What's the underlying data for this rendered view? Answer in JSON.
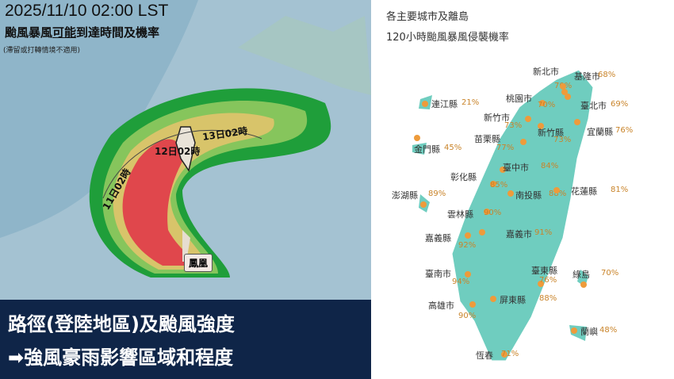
{
  "left_panel": {
    "datetime": "2025/11/10 02:00 LST",
    "title_pre": "颱風暴風",
    "title_underlined": "可能",
    "title_post": "到達時間及機率",
    "note": "(滯留或打轉情境不適用)",
    "track_labels": [
      "13日02時",
      "12日02時",
      "11日02時"
    ],
    "typhoon_name": "鳳凰",
    "colors": {
      "green": "#1f9e3a",
      "yellow": "#d8c46a",
      "red": "#e0474c",
      "sea": "#8fb5c9"
    }
  },
  "banner": {
    "line1": "路徑(登陸地區)及颱風強度",
    "line2": "➡強風豪雨影響區域和程度",
    "background": "#0f2548"
  },
  "right_panel": {
    "title1": "各主要城市及離島",
    "title2": "120小時颱風暴風侵襲機率",
    "land_color": "#6fcdbf",
    "locations": [
      {
        "name": "新北市",
        "prob": "70%"
      },
      {
        "name": "基隆市",
        "prob": "68%"
      },
      {
        "name": "桃園市",
        "prob": "70%"
      },
      {
        "name": "臺北市",
        "prob": "69%"
      },
      {
        "name": "連江縣",
        "prob": "21%"
      },
      {
        "name": "新竹市",
        "prob": "73%"
      },
      {
        "name": "新竹縣",
        "prob": "73%"
      },
      {
        "name": "宜蘭縣",
        "prob": "76%"
      },
      {
        "name": "苗栗縣",
        "prob": "77%"
      },
      {
        "name": "金門縣",
        "prob": "45%"
      },
      {
        "name": "臺中市",
        "prob": "84%"
      },
      {
        "name": "彰化縣",
        "prob": "85%"
      },
      {
        "name": "南投縣",
        "prob": "88%"
      },
      {
        "name": "花蓮縣",
        "prob": "81%"
      },
      {
        "name": "澎湖縣",
        "prob": "89%"
      },
      {
        "name": "雲林縣",
        "prob": "90%"
      },
      {
        "name": "嘉義市",
        "prob": "91%"
      },
      {
        "name": "嘉義縣",
        "prob": "92%"
      },
      {
        "name": "臺南市",
        "prob": "94%"
      },
      {
        "name": "臺東縣",
        "prob": "76%"
      },
      {
        "name": "綠島",
        "prob": "70%"
      },
      {
        "name": "屏東縣",
        "prob": "88%"
      },
      {
        "name": "高雄市",
        "prob": "90%"
      },
      {
        "name": "蘭嶼",
        "prob": "48%"
      },
      {
        "name": "恆春",
        "prob": "71%"
      }
    ]
  }
}
